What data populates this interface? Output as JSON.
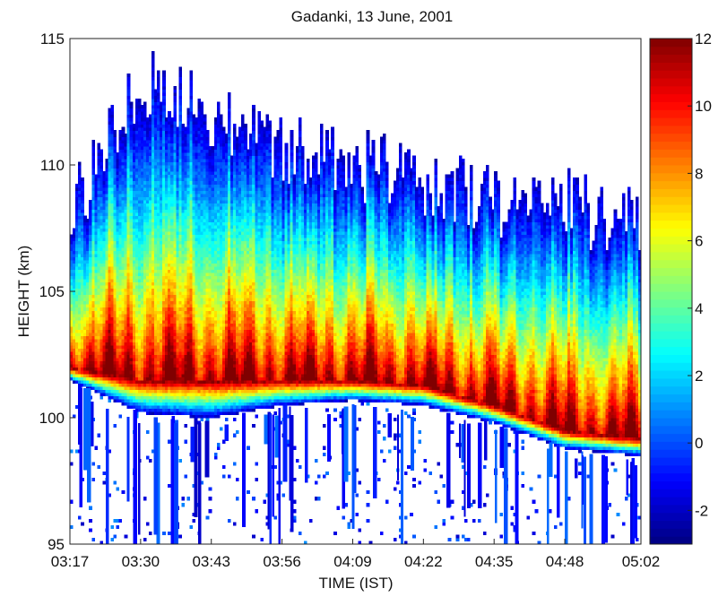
{
  "chart_data": {
    "type": "heatmap",
    "title": "Gadanki, 13 June, 2001",
    "xlabel": "TIME (IST)",
    "ylabel": "HEIGHT (km)",
    "x_ticks": [
      "03:17",
      "03:30",
      "03:43",
      "03:56",
      "04:09",
      "04:22",
      "04:35",
      "04:48",
      "05:02"
    ],
    "y_ticks": [
      95,
      100,
      105,
      110,
      115
    ],
    "ylim": [
      95,
      115
    ],
    "xlim": [
      "03:17",
      "05:02"
    ],
    "colorbar": {
      "ticks": [
        -2,
        0,
        2,
        4,
        6,
        8,
        10,
        12
      ],
      "range": [
        -3,
        12
      ],
      "colormap": "jet"
    },
    "layer": {
      "description_points": [
        {
          "time": "03:17",
          "bottom": 101.5,
          "peak": 102.0,
          "top": 108.0
        },
        {
          "time": "03:30",
          "bottom": 100.2,
          "peak": 101.5,
          "top": 113.3
        },
        {
          "time": "03:43",
          "bottom": 100.0,
          "peak": 101.5,
          "top": 112.0
        },
        {
          "time": "03:56",
          "bottom": 100.5,
          "peak": 101.5,
          "top": 110.5
        },
        {
          "time": "04:09",
          "bottom": 100.7,
          "peak": 101.5,
          "top": 110.0
        },
        {
          "time": "04:22",
          "bottom": 100.5,
          "peak": 101.3,
          "top": 109.5
        },
        {
          "time": "04:35",
          "bottom": 99.8,
          "peak": 100.5,
          "top": 108.5
        },
        {
          "time": "04:48",
          "bottom": 98.8,
          "peak": 99.5,
          "top": 108.5
        },
        {
          "time": "05:02",
          "bottom": 98.5,
          "peak": 99.2,
          "top": 107.5
        }
      ],
      "peak_value": 12,
      "edge_value": -2
    }
  }
}
